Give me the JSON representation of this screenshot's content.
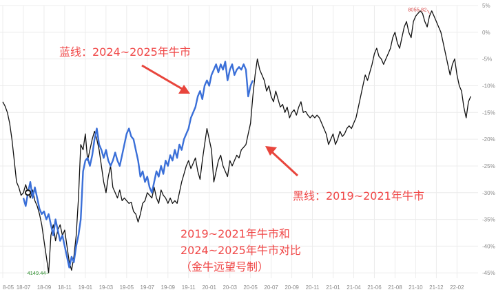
{
  "chart_data": {
    "type": "line",
    "title": "",
    "xlabel": "",
    "ylabel": "",
    "ylim": [
      -46,
      5
    ],
    "y_ticks": [
      "5%",
      "0%",
      "-5%",
      "-10%",
      "-15%",
      "-20%",
      "-25%",
      "-30%",
      "-35%",
      "-40%",
      "-45%"
    ],
    "y_tick_values": [
      5,
      0,
      -5,
      -10,
      -15,
      -20,
      -25,
      -30,
      -35,
      -40,
      -45
    ],
    "x_ticks": [
      "8-05",
      "18-07",
      "18-09",
      "18-11",
      "19-01",
      "19-03",
      "19-05",
      "19-07",
      "19-09",
      "19-11",
      "20-01",
      "20-03",
      "20-05",
      "20-07",
      "20-09",
      "20-11",
      "21-01",
      "21-04",
      "21-06",
      "21-08",
      "21-10",
      "21-12",
      "22-02"
    ],
    "x_tick_index": [
      0,
      9,
      18,
      27,
      36,
      45,
      54,
      63,
      72,
      81,
      90,
      99,
      108,
      117,
      126,
      135,
      144,
      153,
      162,
      171,
      180,
      189,
      198
    ],
    "x_count": 207,
    "grid": true,
    "series": [
      {
        "name": "黑线",
        "color": "#111111",
        "start_index": 0,
        "values": [
          -13,
          -13.8,
          -15,
          -17,
          -20,
          -24,
          -28,
          -29,
          -30.5,
          -30,
          -28.5,
          -30,
          -31,
          -29.5,
          -31.5,
          -32.5,
          -34,
          -36,
          -39,
          -42,
          -45,
          -38,
          -36,
          -39,
          -37,
          -36,
          -38,
          -37,
          -40,
          -43,
          -44.5,
          -42,
          -38,
          -31,
          -21,
          -22,
          -19,
          -24,
          -22,
          -20,
          -18.5,
          -20,
          -22,
          -25,
          -28,
          -30,
          -27,
          -25,
          -29,
          -30,
          -31,
          -29.5,
          -31.5,
          -31,
          -31.5,
          -32,
          -31.8,
          -33.5,
          -34,
          -35.5,
          -34,
          -32,
          -31.5,
          -30,
          -30.5,
          -31,
          -29,
          -31,
          -32,
          -29.5,
          -30.5,
          -31,
          -32,
          -31,
          -32,
          -31.5,
          -32,
          -30,
          -28,
          -26.5,
          -25,
          -24,
          -25.5,
          -24.5,
          -23.5,
          -26,
          -27.5,
          -24,
          -21,
          -18,
          -20,
          -22,
          -28,
          -26,
          -24,
          -23,
          -25,
          -26,
          -27,
          -24,
          -25,
          -24,
          -23,
          -23.5,
          -22,
          -21.5,
          -21,
          -19,
          -17,
          -12,
          -8,
          -5,
          -7,
          -8,
          -9,
          -11,
          -10,
          -12,
          -13,
          -11,
          -12.5,
          -14,
          -13.5,
          -15,
          -14,
          -16,
          -15,
          -14.5,
          -15.5,
          -14,
          -13,
          -15,
          -14.8,
          -15.5,
          -16,
          -15.5,
          -16,
          -15.5,
          -16,
          -17,
          -18,
          -19,
          -21,
          -20,
          -19,
          -21,
          -20,
          -18.5,
          -19.5,
          -19,
          -18,
          -17.5,
          -18,
          -17,
          -16,
          -14,
          -12,
          -10,
          -8,
          -9,
          -7.5,
          -6,
          -4,
          -3,
          -4.5,
          -5,
          -6,
          -5,
          -4,
          -3,
          -1,
          0,
          -2,
          -3,
          -1,
          1,
          2,
          0,
          -1,
          2,
          3,
          3.5,
          4,
          3.5,
          2,
          1,
          3,
          4,
          3,
          2,
          1,
          0,
          -2,
          -4,
          -6,
          -8,
          -6,
          -5,
          -8,
          -10,
          -11,
          -14,
          -16,
          -13,
          -12
        ],
        "extremes": [
          {
            "label": "8055.82",
            "index": 186,
            "value": 3.5,
            "color": "#d64545"
          },
          {
            "label": "4149.44",
            "index": 20,
            "value": -45,
            "color": "#2f8f2f"
          }
        ]
      },
      {
        "name": "蓝线",
        "color": "#3a6fd8",
        "start_index": 9,
        "values": [
          -31,
          -32.5,
          -30,
          -28,
          -31,
          -29,
          -31,
          -33,
          -34,
          -33.5,
          -35,
          -34,
          -36,
          -38,
          -35,
          -37,
          -39,
          -38,
          -40,
          -42,
          -44,
          -42,
          -43,
          -40,
          -38,
          -35,
          -26,
          -24,
          -23.5,
          -25,
          -23,
          -20,
          -18,
          -21,
          -22,
          -23.5,
          -22,
          -24,
          -25,
          -24,
          -22.5,
          -24,
          -25,
          -23,
          -21,
          -19,
          -18,
          -19.5,
          -20,
          -22,
          -24,
          -27,
          -26,
          -28,
          -27,
          -29,
          -30,
          -28,
          -26,
          -27,
          -25,
          -26.5,
          -24,
          -25,
          -23,
          -24,
          -22,
          -23.5,
          -21,
          -22,
          -20,
          -19,
          -18,
          -16,
          -15,
          -14,
          -12,
          -11,
          -12.5,
          -10,
          -9,
          -10,
          -8,
          -7,
          -6,
          -7.5,
          -6,
          -7,
          -5.5,
          -9,
          -7,
          -6,
          -8,
          -7,
          -6.5,
          -7,
          -6,
          -7,
          -12,
          -10,
          -9
        ]
      }
    ],
    "annotations": [
      {
        "text": "蓝线：2024~2025年牛市"
      },
      {
        "text": "黑线：2019~2021年牛市"
      },
      {
        "text": "2019~2021年牛市和"
      },
      {
        "text": "2024~2025年牛市对比"
      },
      {
        "text": "（金牛远望号制）"
      }
    ]
  }
}
